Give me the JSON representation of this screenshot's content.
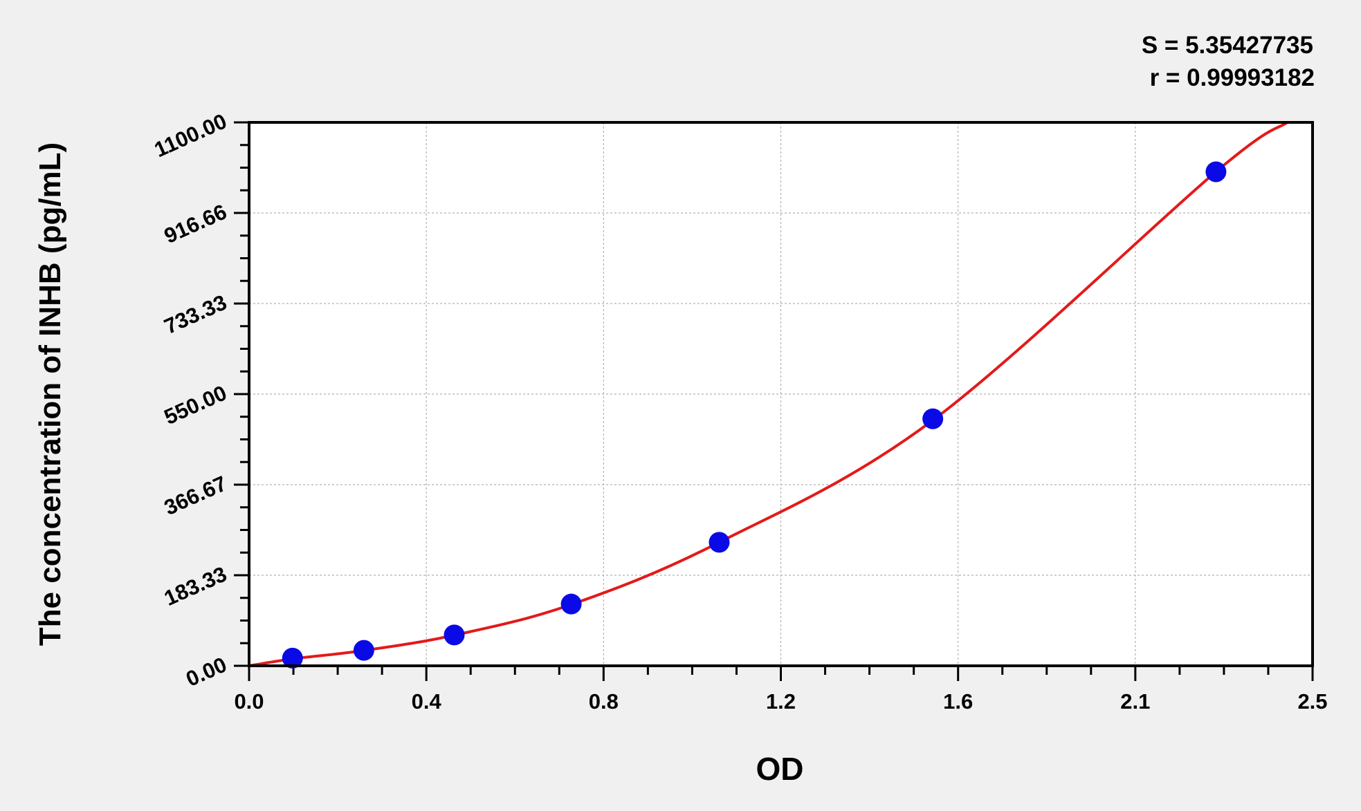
{
  "chart_data": {
    "type": "scatter",
    "title": "",
    "xlabel": "OD",
    "ylabel": "The concentration of INHB (pg/mL)",
    "xlim": [
      0,
      2.4
    ],
    "ylim": [
      0,
      1100
    ],
    "grid": true,
    "x_tick_labels": [
      "0.0",
      "0.4",
      "0.8",
      "1.2",
      "1.6",
      "2.1",
      "2.5"
    ],
    "y_tick_labels": [
      "0.00",
      "183.33",
      "366.67",
      "550.00",
      "733.33",
      "916.66",
      "1100.00"
    ],
    "annotations": {
      "s": "S = 5.35427735",
      "r": "r = 0.99993182"
    },
    "colors": {
      "points": "#0a0ae6",
      "curve": "#e31a1a",
      "background": "#f0f0f0"
    },
    "points": {
      "x": [
        0.098,
        0.259,
        0.463,
        0.727,
        1.061,
        1.543,
        2.182
      ],
      "y": [
        15.6,
        31.25,
        62.5,
        125,
        250,
        500,
        1000
      ]
    },
    "fit_curve": {
      "x": [
        0,
        0.098,
        0.259,
        0.463,
        0.727,
        1.061,
        1.543,
        2.182,
        2.343
      ],
      "y": [
        0,
        14,
        31,
        62,
        124,
        250,
        497,
        1000,
        1100
      ]
    }
  }
}
